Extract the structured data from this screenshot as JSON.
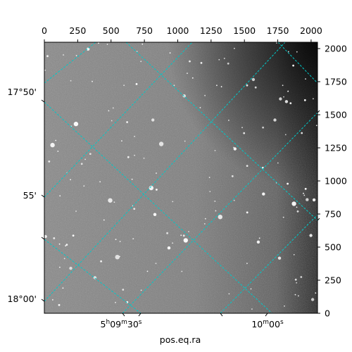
{
  "chart_data": {
    "type": "image",
    "colormap": "gray",
    "xlabel": "pos.eq.ra",
    "ylabel": "",
    "top_axis": {
      "ticks": [
        0,
        250,
        500,
        750,
        1000,
        1250,
        1500,
        1750,
        2000
      ],
      "labels": [
        "0",
        "250",
        "500",
        "750",
        "1000",
        "1250",
        "1500",
        "1750",
        "2000"
      ],
      "lim": [
        0,
        2048
      ]
    },
    "right_axis": {
      "ticks": [
        0,
        250,
        500,
        750,
        1000,
        1250,
        1500,
        1750,
        2000
      ],
      "labels": [
        "0",
        "250",
        "500",
        "750",
        "1000",
        "1250",
        "1500",
        "1750",
        "2000"
      ],
      "lim": [
        0,
        2048
      ]
    },
    "bottom_axis": {
      "labels": [
        "5h09m30s",
        "10m00s"
      ],
      "label_parts": [
        [
          {
            "t": "5",
            "sup": ""
          },
          {
            "t": "h",
            "sup": "1"
          },
          {
            "t": "09",
            "sup": ""
          },
          {
            "t": "m",
            "sup": "1"
          },
          {
            "t": "30",
            "sup": ""
          },
          {
            "t": "s",
            "sup": "1"
          }
        ],
        [
          {
            "t": "10",
            "sup": ""
          },
          {
            "t": "m",
            "sup": "1"
          },
          {
            "t": "00",
            "sup": ""
          },
          {
            "t": "s",
            "sup": "1"
          }
        ]
      ]
    },
    "left_axis": {
      "labels": [
        "17°50'",
        "55'",
        "18°00'"
      ]
    },
    "grid": true,
    "grid_color": "#00c8c8",
    "grid_style": "dashed"
  }
}
